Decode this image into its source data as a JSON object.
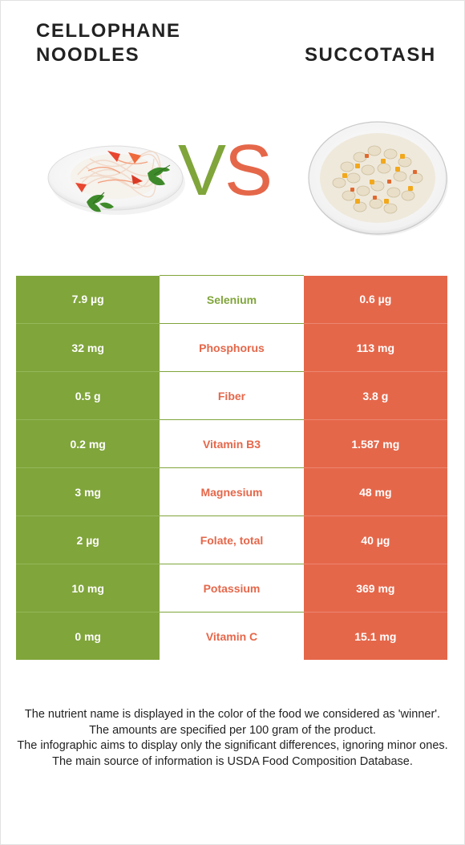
{
  "foods": {
    "left": {
      "name": "Cellophane noodles",
      "image": "cellophane-noodles-salad-image",
      "color": "#80a53b"
    },
    "right": {
      "name": "Succotash",
      "image": "succotash-bowl-image",
      "color": "#e5674a"
    }
  },
  "vs": {
    "v": "V",
    "s": "S"
  },
  "colors": {
    "left_winner": "#80a53b",
    "right_winner": "#e5674a"
  },
  "rows": [
    {
      "left": "7.9 µg",
      "nutrient": "Selenium",
      "right": "0.6 µg",
      "winner": "left"
    },
    {
      "left": "32 mg",
      "nutrient": "Phosphorus",
      "right": "113 mg",
      "winner": "right"
    },
    {
      "left": "0.5 g",
      "nutrient": "Fiber",
      "right": "3.8 g",
      "winner": "right"
    },
    {
      "left": "0.2 mg",
      "nutrient": "Vitamin B3",
      "right": "1.587 mg",
      "winner": "right"
    },
    {
      "left": "3 mg",
      "nutrient": "Magnesium",
      "right": "48 mg",
      "winner": "right"
    },
    {
      "left": "2 µg",
      "nutrient": "Folate, total",
      "right": "40 µg",
      "winner": "right"
    },
    {
      "left": "10 mg",
      "nutrient": "Potassium",
      "right": "369 mg",
      "winner": "right"
    },
    {
      "left": "0 mg",
      "nutrient": "Vitamin C",
      "right": "15.1 mg",
      "winner": "right"
    }
  ],
  "footer": {
    "line1": "The nutrient name is displayed in the color of the food we considered as 'winner'.",
    "line2": "The amounts are specified per 100 gram of the product.",
    "line3": "The infographic aims to display only the significant differences, ignoring minor ones.",
    "line4": "The main source of information is USDA Food Composition Database."
  }
}
